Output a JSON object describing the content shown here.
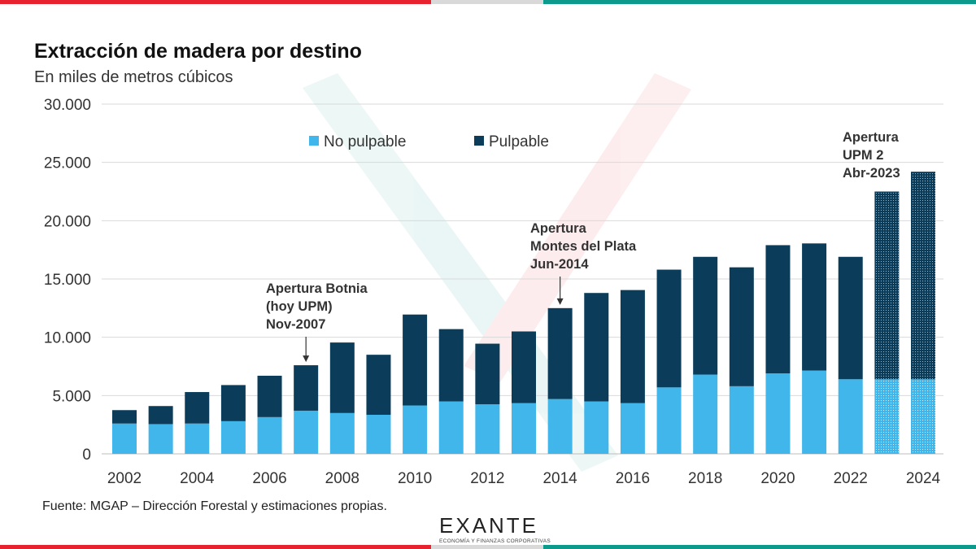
{
  "chart_data": {
    "type": "bar",
    "stacked": true,
    "title": "Extracción de madera por destino",
    "subtitle": "En miles de metros cúbicos",
    "categories": [
      "2002",
      "2003",
      "2004",
      "2005",
      "2006",
      "2007",
      "2008",
      "2009",
      "2010",
      "2011",
      "2012",
      "2013",
      "2014",
      "2015",
      "2016",
      "2017",
      "2018",
      "2019",
      "2020",
      "2021",
      "2022",
      "2023",
      "2024"
    ],
    "x_tick_labels": [
      "2002",
      "2004",
      "2006",
      "2008",
      "2010",
      "2012",
      "2014",
      "2016",
      "2018",
      "2020",
      "2022",
      "2024"
    ],
    "series": [
      {
        "name": "No pulpable",
        "color": "#41b6ea",
        "values": [
          2600,
          2550,
          2600,
          2800,
          3150,
          3700,
          3500,
          3350,
          4150,
          4500,
          4250,
          4350,
          4700,
          4500,
          4350,
          5700,
          6800,
          5800,
          6900,
          7150,
          6400,
          6400,
          6400
        ]
      },
      {
        "name": "Pulpable",
        "color": "#0b3d5a",
        "values": [
          1150,
          1550,
          2700,
          3100,
          3550,
          3900,
          6050,
          5150,
          7800,
          6200,
          5200,
          6150,
          7800,
          9300,
          9700,
          10100,
          10100,
          10200,
          11000,
          10900,
          10500,
          16100,
          17800
        ]
      }
    ],
    "estimated_categories": [
      "2023",
      "2024"
    ],
    "ylim": [
      0,
      30000
    ],
    "yticks": [
      0,
      5000,
      10000,
      15000,
      20000,
      25000,
      30000
    ],
    "ytick_labels": [
      "0",
      "5.000",
      "10.000",
      "15.000",
      "20.000",
      "25.000",
      "30.000"
    ],
    "legend_position": "top-center",
    "grid": "horizontal",
    "annotations": [
      {
        "category": "2007",
        "lines": [
          "Apertura  Botnia",
          "(hoy UPM)",
          "Nov-2007"
        ],
        "arrow": true
      },
      {
        "category": "2014",
        "lines": [
          "Apertura",
          "Montes del Plata",
          "Jun-2014"
        ],
        "arrow": true
      },
      {
        "category": "2023",
        "lines": [
          "Apertura",
          "UPM 2",
          "Abr-2023"
        ],
        "arrow": false
      }
    ]
  },
  "source": "Fuente: MGAP – Dirección Forestal y estimaciones propias.",
  "logo": {
    "name": "EXANTE",
    "tagline": "ECONOMÍA Y FINANZAS CORPORATIVAS"
  }
}
